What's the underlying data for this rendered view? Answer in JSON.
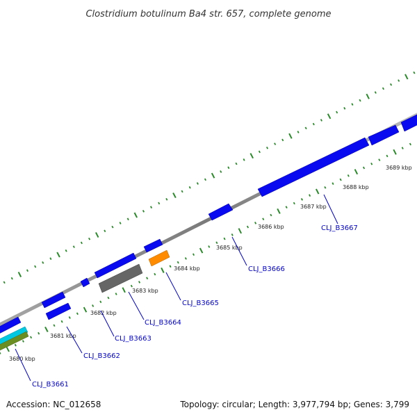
{
  "title": "Clostridium botulinum Ba4 str. 657, complete genome",
  "footer": {
    "accession": "Accession: NC_012658",
    "summary": "Topology: circular; Length: 3,977,794 bp; Genes: 3,799"
  },
  "ticks": [
    "3680 kbp",
    "3681 kbp",
    "3682 kbp",
    "3683 kbp",
    "3684 kbp",
    "3685 kbp",
    "3686 kbp",
    "3687 kbp",
    "3688 kbp",
    "3689 kbp"
  ],
  "genes": [
    "CLJ_B3661",
    "CLJ_B3662",
    "CLJ_B3663",
    "CLJ_B3664",
    "CLJ_B3665",
    "CLJ_B3666",
    "CLJ_B3667"
  ],
  "colors": {
    "cds": "#0a0af0",
    "backbone": "#8c8c8c",
    "gc_ticks": "#2a8a2a",
    "rna": "#ff8c00",
    "pseudo": "#666666",
    "cyan_feature": "#00c8e0",
    "olive_feature": "#6b8e23"
  }
}
